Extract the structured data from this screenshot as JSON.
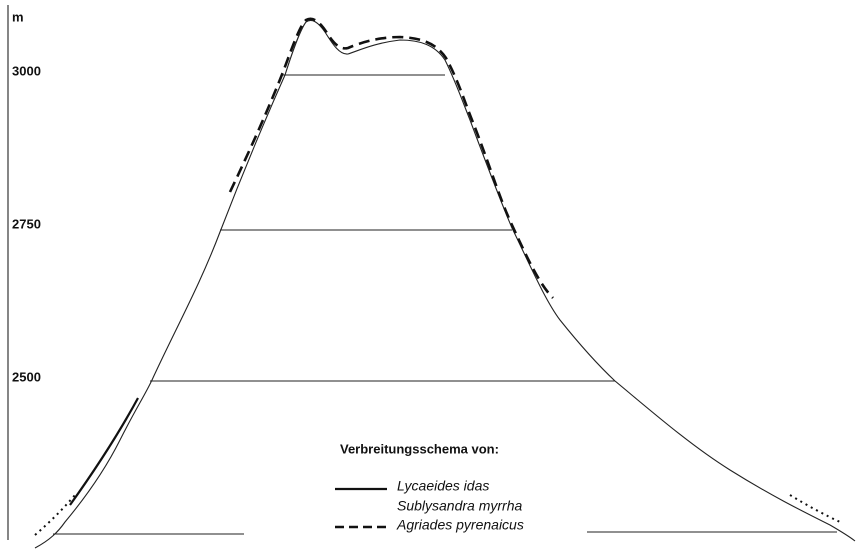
{
  "axis": {
    "unit": "m",
    "ticks": [
      3000,
      2750,
      2500
    ]
  },
  "legend": {
    "title": "Verbreitungsschema von:",
    "items": [
      "Lycaeides idas",
      "Sublysandra myrrha",
      "Agriades pyrenaicus"
    ]
  }
}
